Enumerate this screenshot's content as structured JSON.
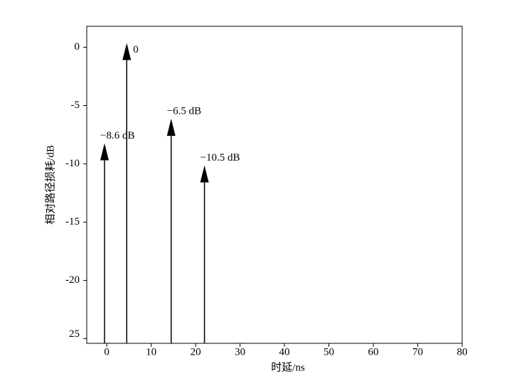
{
  "chart_data": {
    "type": "stem",
    "xlabel": "时延/ns",
    "ylabel": "相对路径损耗/dB",
    "x": [
      -0.5,
      4.5,
      14.5,
      22
    ],
    "values": [
      -8.6,
      0,
      -6.5,
      -10.5
    ],
    "value_labels": [
      "−8.6 dB",
      "0",
      "−6.5 dB",
      "−10.5 dB"
    ],
    "color": "#000000",
    "xlim": [
      -4.5,
      80
    ],
    "xticks": [
      0,
      10,
      20,
      30,
      40,
      50,
      60,
      70,
      80
    ],
    "ylim": [
      -25.4,
      1.8
    ],
    "yticks": [
      0,
      -5,
      -10,
      -15,
      -20,
      {
        "value": -25,
        "label": "25"
      }
    ]
  }
}
